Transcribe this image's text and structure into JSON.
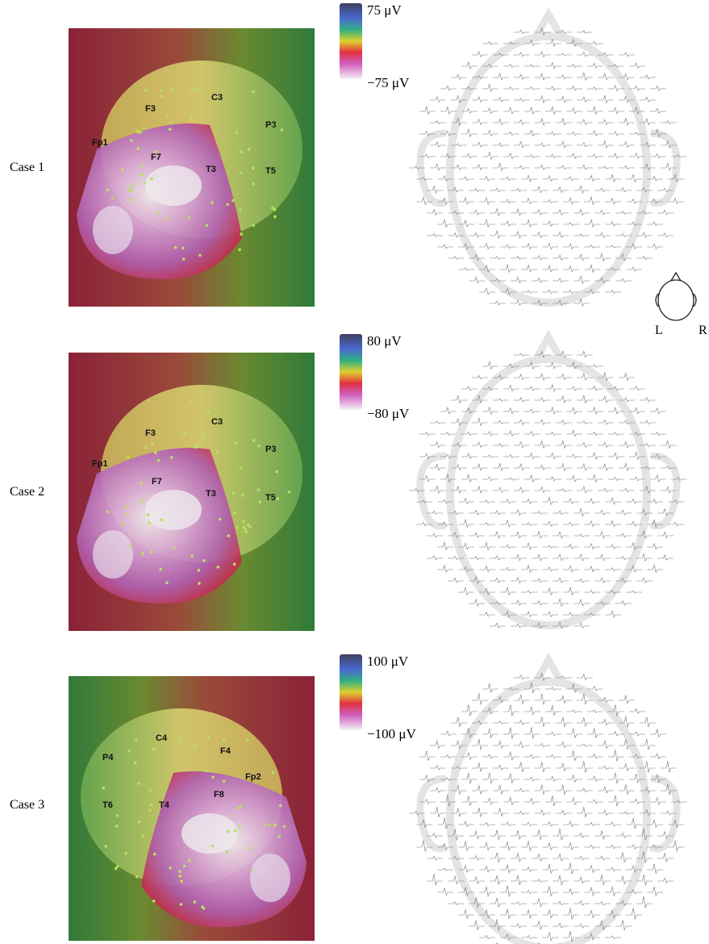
{
  "cases": [
    {
      "label": "Case 1",
      "scale_max": "75 μV",
      "scale_min": "−75 μV",
      "electrodes": [
        "F3",
        "C3",
        "P3",
        "Fp1",
        "F7",
        "T3",
        "T5"
      ]
    },
    {
      "label": "Case 2",
      "scale_max": "80 μV",
      "scale_min": "−80 μV",
      "electrodes": [
        "F3",
        "C3",
        "P3",
        "Fp1",
        "F7",
        "T3",
        "T5"
      ]
    },
    {
      "label": "Case 3",
      "scale_max": "100 μV",
      "scale_min": "−100 μV",
      "electrodes": [
        "P4",
        "C4",
        "F4",
        "Fp2",
        "F8",
        "T6",
        "T4"
      ]
    }
  ],
  "orientation": {
    "left": "L",
    "right": "R"
  }
}
